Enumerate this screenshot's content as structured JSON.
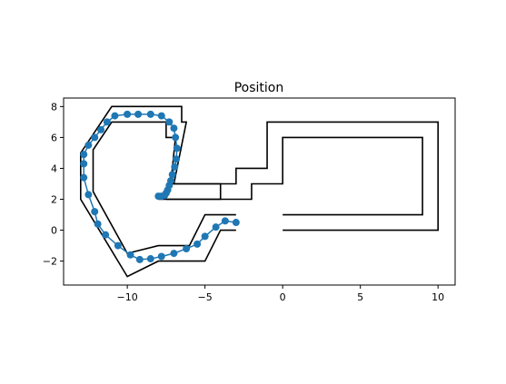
{
  "chart_data": {
    "type": "line",
    "title": "Position",
    "xlabel": "",
    "ylabel": "",
    "xlim": [
      -14.1,
      11.1
    ],
    "ylim": [
      -3.55,
      8.55
    ],
    "x_ticks": [
      -10,
      -5,
      0,
      5,
      10
    ],
    "y_ticks": [
      -2,
      0,
      2,
      4,
      6,
      8
    ],
    "x_tick_labels": [
      "−10",
      "−5",
      "0",
      "5",
      "10"
    ],
    "y_tick_labels": [
      "−2",
      "0",
      "2",
      "4",
      "6",
      "8"
    ],
    "grid": false,
    "legend": "none",
    "series": [
      {
        "style": "line",
        "color": "#000000",
        "points": [
          [
            -3,
            1
          ],
          [
            -5,
            1
          ],
          [
            -6,
            -1
          ],
          [
            -8,
            -1
          ],
          [
            -10,
            -1.5
          ],
          [
            -12.2,
            2.5
          ],
          [
            -12.2,
            5.2
          ],
          [
            -11,
            7
          ],
          [
            -7.5,
            7
          ],
          [
            -7.5,
            6
          ],
          [
            -6.9,
            6
          ],
          [
            -7.2,
            3
          ],
          [
            -3,
            3
          ],
          [
            -3,
            4
          ],
          [
            -1,
            4
          ],
          [
            -1,
            7
          ],
          [
            10,
            7
          ],
          [
            10,
            0
          ],
          [
            0,
            0
          ]
        ]
      },
      {
        "style": "line",
        "color": "#000000",
        "points": [
          [
            -3,
            0
          ],
          [
            -4,
            0
          ],
          [
            -5,
            -2
          ],
          [
            -8,
            -2
          ],
          [
            -10,
            -3
          ],
          [
            -13,
            2
          ],
          [
            -13,
            5
          ],
          [
            -11,
            8
          ],
          [
            -6.5,
            8
          ],
          [
            -6.5,
            7
          ],
          [
            -6.2,
            7
          ],
          [
            -7,
            3
          ],
          [
            -4,
            3
          ],
          [
            -4,
            2
          ],
          [
            -8,
            2
          ]
        ]
      },
      {
        "style": "line",
        "color": "#000000",
        "points": [
          [
            0,
            1
          ],
          [
            9,
            1
          ],
          [
            9,
            6
          ],
          [
            0,
            6
          ],
          [
            0,
            3
          ],
          [
            -2,
            3
          ],
          [
            -2,
            2
          ],
          [
            -7.5,
            2
          ]
        ]
      },
      {
        "style": "line-markers",
        "color": "#1f77b4",
        "points": [
          [
            -3,
            0.5
          ],
          [
            -3.7,
            0.6
          ],
          [
            -4.3,
            0.2
          ],
          [
            -5,
            -0.4
          ],
          [
            -5.5,
            -0.9
          ],
          [
            -6.2,
            -1.2
          ],
          [
            -7,
            -1.5
          ],
          [
            -7.8,
            -1.7
          ],
          [
            -8.5,
            -1.85
          ],
          [
            -9.2,
            -1.9
          ],
          [
            -9.8,
            -1.6
          ],
          [
            -10.6,
            -1
          ],
          [
            -11.4,
            -0.3
          ],
          [
            -11.9,
            0.4
          ],
          [
            -12.1,
            1.2
          ],
          [
            -12.5,
            2.3
          ],
          [
            -12.8,
            3.4
          ],
          [
            -12.8,
            4.3
          ],
          [
            -12.8,
            4.9
          ],
          [
            -12.5,
            5.5
          ],
          [
            -12.1,
            6
          ],
          [
            -11.7,
            6.5
          ],
          [
            -11.3,
            7
          ],
          [
            -10.8,
            7.4
          ],
          [
            -10,
            7.5
          ],
          [
            -9.3,
            7.5
          ],
          [
            -8.5,
            7.5
          ],
          [
            -7.8,
            7.4
          ],
          [
            -7.3,
            7
          ],
          [
            -7,
            6.6
          ],
          [
            -6.9,
            6
          ],
          [
            -6.8,
            5.3
          ],
          [
            -6.85,
            4.6
          ],
          [
            -6.95,
            4.1
          ],
          [
            -7.1,
            3.6
          ],
          [
            -7.2,
            3.2
          ],
          [
            -7.3,
            2.9
          ],
          [
            -7.4,
            2.6
          ],
          [
            -7.5,
            2.4
          ],
          [
            -7.6,
            2.25
          ],
          [
            -7.8,
            2.2
          ],
          [
            -8,
            2.2
          ]
        ]
      }
    ]
  }
}
